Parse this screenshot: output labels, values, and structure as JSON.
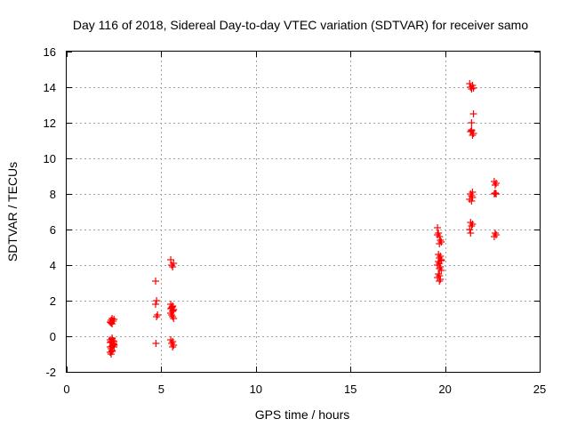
{
  "chart_data": {
    "type": "scatter",
    "title": "Day 116 of 2018, Sidereal Day-to-day VTEC variation (SDTVAR) for receiver samo",
    "xlabel": "GPS time / hours",
    "ylabel": "SDTVAR / TECUs",
    "xlim": [
      0,
      25
    ],
    "ylim": [
      -2,
      16
    ],
    "xticks": [
      0,
      5,
      10,
      15,
      20,
      25
    ],
    "yticks": [
      -2,
      0,
      2,
      4,
      6,
      8,
      10,
      12,
      14,
      16
    ],
    "grid": true,
    "legend": "none",
    "marker_color": "#ff0000",
    "marker": "+",
    "series": [
      {
        "name": "SDTVAR",
        "x": [
          2.3,
          2.35,
          2.4,
          2.45,
          2.5,
          2.3,
          2.35,
          2.4,
          2.45,
          2.5,
          2.3,
          2.35,
          2.4,
          2.45,
          2.5,
          2.3,
          2.35,
          2.4,
          2.45,
          2.5,
          2.35,
          2.4,
          2.45,
          2.4,
          2.5,
          2.3,
          2.4,
          4.7,
          4.75,
          4.7,
          4.8,
          4.75,
          4.72,
          5.5,
          5.55,
          5.6,
          5.65,
          5.5,
          5.6,
          5.55,
          5.65,
          5.6,
          5.5,
          5.55,
          5.6,
          5.65,
          5.5,
          5.6,
          5.55,
          5.65,
          5.6,
          5.5,
          5.58,
          5.62,
          19.6,
          19.65,
          19.7,
          19.75,
          19.8,
          19.6,
          19.7,
          19.65,
          19.75,
          19.7,
          19.8,
          19.65,
          19.7,
          19.6,
          19.75,
          19.7,
          19.8,
          19.65,
          19.7,
          19.6,
          19.75,
          19.7,
          19.8,
          21.3,
          21.35,
          21.4,
          21.45,
          21.5,
          21.35,
          21.4,
          21.45,
          21.5,
          21.4,
          21.45,
          21.35,
          21.4,
          21.45,
          21.3,
          21.4,
          21.35,
          21.45,
          21.4,
          21.3,
          21.35,
          21.4,
          21.5,
          22.6,
          22.7,
          22.65,
          22.7,
          22.6,
          22.65,
          22.7,
          22.6,
          22.65
        ],
        "y": [
          0.8,
          0.9,
          1.0,
          0.85,
          0.95,
          -0.2,
          -0.3,
          -0.1,
          -0.4,
          -0.5,
          -0.6,
          -0.7,
          -0.8,
          -0.5,
          -0.3,
          -0.9,
          -1.0,
          -0.85,
          -0.4,
          -0.6,
          0.75,
          -0.15,
          -0.25,
          0.7,
          -0.45,
          -0.35,
          -0.55,
          3.1,
          2.0,
          1.8,
          1.2,
          1.1,
          -0.4,
          4.3,
          4.0,
          3.9,
          4.1,
          1.8,
          1.7,
          1.6,
          1.5,
          1.4,
          1.3,
          1.2,
          1.1,
          1.0,
          1.55,
          -0.3,
          -0.4,
          -0.5,
          -0.6,
          -0.2,
          1.65,
          1.45,
          6.1,
          5.8,
          5.6,
          5.4,
          5.3,
          5.7,
          5.2,
          4.6,
          4.5,
          4.4,
          4.3,
          4.2,
          4.1,
          4.0,
          3.9,
          3.8,
          3.7,
          3.5,
          3.4,
          3.3,
          3.2,
          3.1,
          4.25,
          14.2,
          14.0,
          13.9,
          14.1,
          11.4,
          11.5,
          11.6,
          11.3,
          12.5,
          12.0,
          8.1,
          8.0,
          7.9,
          7.8,
          7.7,
          7.6,
          6.4,
          6.3,
          6.2,
          6.0,
          5.8,
          11.55,
          13.95,
          8.7,
          8.6,
          8.5,
          8.0,
          8.0,
          5.8,
          5.7,
          5.6,
          8.05
        ]
      }
    ]
  }
}
